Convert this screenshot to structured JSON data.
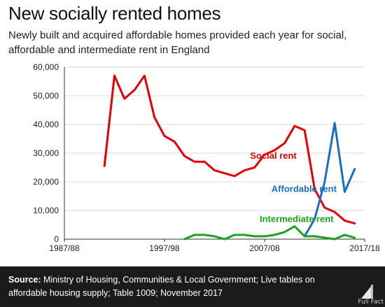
{
  "header": {
    "title": "New socially rented homes",
    "subtitle": "Newly built and acquired affordable homes provided each year for social, affordable and intermediate rent in England"
  },
  "footer": {
    "source_label": "Source:",
    "source_text": "Ministry of Housing, Communities & Local Government; Live tables on affordable housing supply; Table 1009; November 2017",
    "logo_text": "Full Fact",
    "logo_icon": "full-fact-logo"
  },
  "chart_data": {
    "type": "line",
    "title": "",
    "xlabel": "",
    "ylabel": "",
    "x_axis": {
      "ticks": [
        "1987/88",
        "1997/98",
        "2007/08",
        "2017/18"
      ],
      "tick_index": [
        0,
        10,
        20,
        30
      ],
      "min_index": 0,
      "max_index": 30
    },
    "ylim": [
      0,
      60000
    ],
    "yticks": [
      0,
      10000,
      20000,
      30000,
      40000,
      50000,
      60000
    ],
    "ytick_labels": [
      "0",
      "10,000",
      "20,000",
      "30,000",
      "40,000",
      "50,000",
      "60,000"
    ],
    "grid": "horizontal",
    "legend": "inline labels",
    "series": [
      {
        "name": "Social rent",
        "color": "#e60000",
        "start_index": 4,
        "values": [
          25500,
          57000,
          49000,
          52000,
          57000,
          42500,
          36000,
          34000,
          29000,
          27000,
          27000,
          24000,
          23000,
          22000,
          24000,
          25000,
          29500,
          31000,
          33500,
          39500,
          38000,
          17500,
          11000,
          9500,
          6500,
          5500
        ]
      },
      {
        "name": "Affordable rent",
        "color": "#1a6fbf",
        "start_index": 24,
        "values": [
          1000,
          7000,
          20000,
          40500,
          16500,
          24500
        ]
      },
      {
        "name": "Intermediate rent",
        "color": "#1aa31a",
        "start_index": 12,
        "values": [
          0,
          1500,
          1500,
          1000,
          0,
          1500,
          1500,
          1000,
          1000,
          1500,
          2500,
          4500,
          1000,
          1000,
          500,
          0,
          1500,
          500
        ]
      }
    ]
  }
}
